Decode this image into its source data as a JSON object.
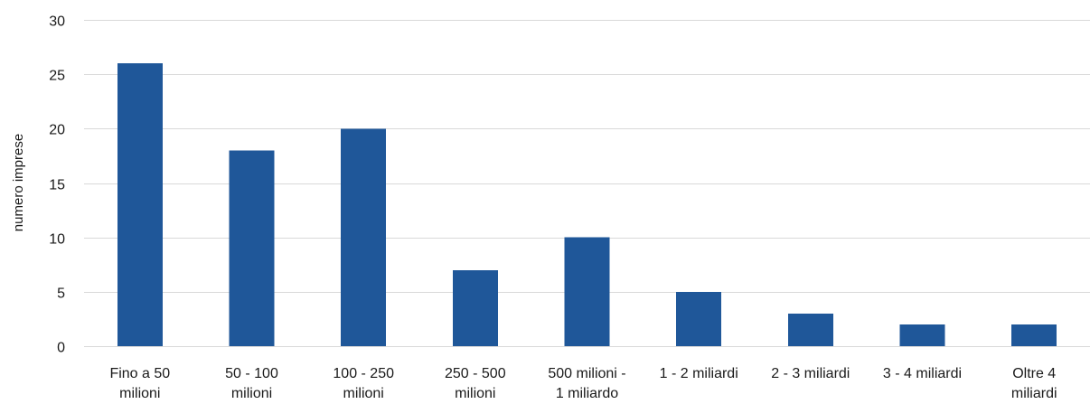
{
  "chart_data": {
    "type": "bar",
    "categories": [
      [
        "Fino a 50",
        "milioni"
      ],
      [
        "50 - 100",
        "milioni"
      ],
      [
        "100 - 250",
        "milioni"
      ],
      [
        "250 - 500",
        "milioni"
      ],
      [
        "500 milioni -",
        "1 miliardo"
      ],
      [
        "1 - 2 miliardi"
      ],
      [
        "2 - 3 miliardi"
      ],
      [
        "3 - 4 miliardi"
      ],
      [
        "Oltre 4",
        "miliardi"
      ]
    ],
    "values": [
      26,
      18,
      20,
      7,
      10,
      5,
      3,
      2,
      2
    ],
    "xlabel": "",
    "ylabel": "numero imprese",
    "ylim": [
      0,
      30
    ],
    "yticks": [
      0,
      5,
      10,
      15,
      20,
      25,
      30
    ],
    "grid": true,
    "bar_color": "#1f5799",
    "grid_color": "#d9d9d9"
  }
}
